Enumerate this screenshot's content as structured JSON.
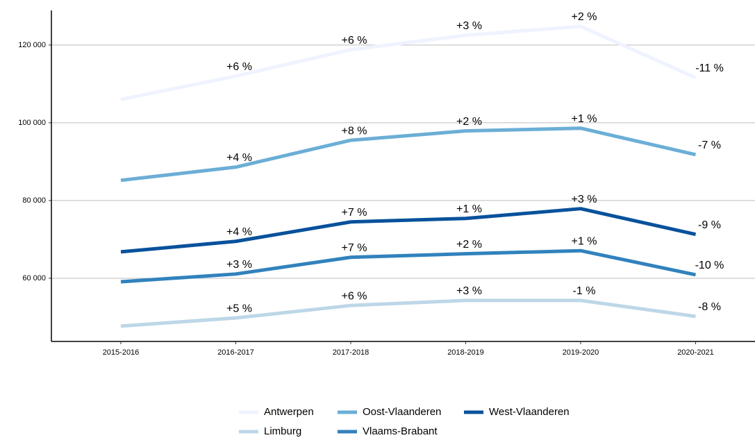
{
  "chart_data": {
    "type": "line",
    "categories": [
      "2015-2016",
      "2016-2017",
      "2017-2018",
      "2018-2019",
      "2019-2020",
      "2020-2021"
    ],
    "ylim": [
      43750,
      128900
    ],
    "yticks": [
      {
        "value": 60000,
        "label": "60 000"
      },
      {
        "value": 80000,
        "label": "80 000"
      },
      {
        "value": 100000,
        "label": "100 000"
      },
      {
        "value": 120000,
        "label": "120 000"
      }
    ],
    "grid": true,
    "legend": "bottom",
    "series": [
      {
        "name": "Antwerpen",
        "color": "#eff3ff",
        "values": [
          106000,
          112000,
          118800,
          122500,
          124800,
          111600
        ],
        "change_labels": [
          "+6 %",
          "+6 %",
          "+3 %",
          "+2 %",
          "-11 %"
        ]
      },
      {
        "name": "Oost-Vlaanderen",
        "color": "#6baed6",
        "values": [
          85200,
          88600,
          95500,
          97900,
          98600,
          91800
        ],
        "change_labels": [
          "+4 %",
          "+8 %",
          "+2 %",
          "+1 %",
          "-7 %"
        ]
      },
      {
        "name": "West-Vlaanderen",
        "color": "#08519c",
        "values": [
          66800,
          69500,
          74500,
          75400,
          77900,
          71300
        ],
        "change_labels": [
          "+4 %",
          "+7 %",
          "+1 %",
          "+3 %",
          "-9 %"
        ]
      },
      {
        "name": "Limburg",
        "color": "#bdd7e7",
        "values": [
          47700,
          49800,
          53000,
          54300,
          54300,
          50200
        ],
        "change_labels": [
          "+5 %",
          "+6 %",
          "+3 %",
          "-1 %",
          "-8 %"
        ]
      },
      {
        "name": "Vlaams-Brabant",
        "color": "#3182bd",
        "values": [
          59100,
          61100,
          65400,
          66300,
          67100,
          60900
        ],
        "change_labels": [
          "+3 %",
          "+7 %",
          "+2 %",
          "+1 %",
          "-10 %"
        ]
      }
    ]
  }
}
